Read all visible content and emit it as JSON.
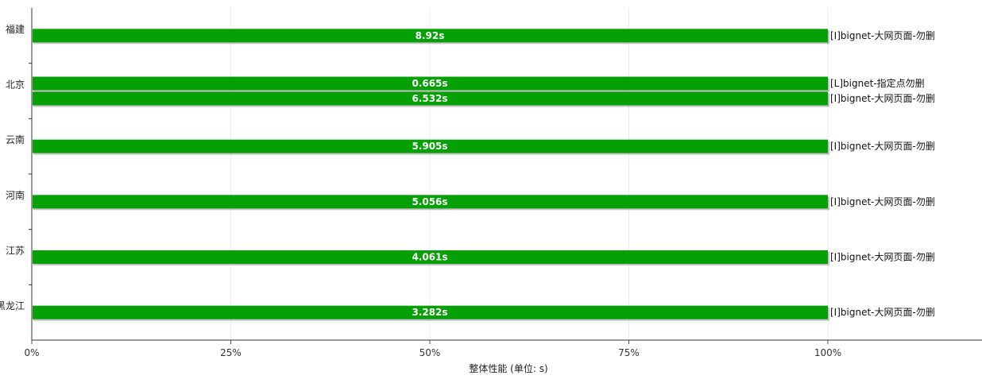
{
  "chart_data": {
    "type": "bar",
    "orientation": "horizontal",
    "stacked": "percent",
    "title": "",
    "corner_label": "",
    "xlabel": "整体性能 (单位: s)",
    "ylabel": "",
    "xlim": [
      0,
      100
    ],
    "x_ticks": [
      "0%",
      "25%",
      "50%",
      "75%",
      "100%"
    ],
    "grid": true,
    "bar_color": "#05a005",
    "categories": [
      "福建",
      "北京",
      "云南",
      "河南",
      "江苏",
      "黑龙江"
    ],
    "bars": [
      {
        "category": "福建",
        "series": "[I]bignet-大网页面-勿删",
        "percent": 100,
        "value_label": "8.92s"
      },
      {
        "category": "北京",
        "series": "[L]bignet-指定点勿删",
        "percent": 100,
        "value_label": "0.665s"
      },
      {
        "category": "北京",
        "series": "[I]bignet-大网页面-勿删",
        "percent": 100,
        "value_label": "6.532s"
      },
      {
        "category": "云南",
        "series": "[I]bignet-大网页面-勿删",
        "percent": 100,
        "value_label": "5.905s"
      },
      {
        "category": "河南",
        "series": "[I]bignet-大网页面-勿删",
        "percent": 100,
        "value_label": "5.056s"
      },
      {
        "category": "江苏",
        "series": "[I]bignet-大网页面-勿删",
        "percent": 100,
        "value_label": "4.061s"
      },
      {
        "category": "黑龙江",
        "series": "[I]bignet-大网页面-勿删",
        "percent": 100,
        "value_label": "3.282s"
      }
    ]
  }
}
